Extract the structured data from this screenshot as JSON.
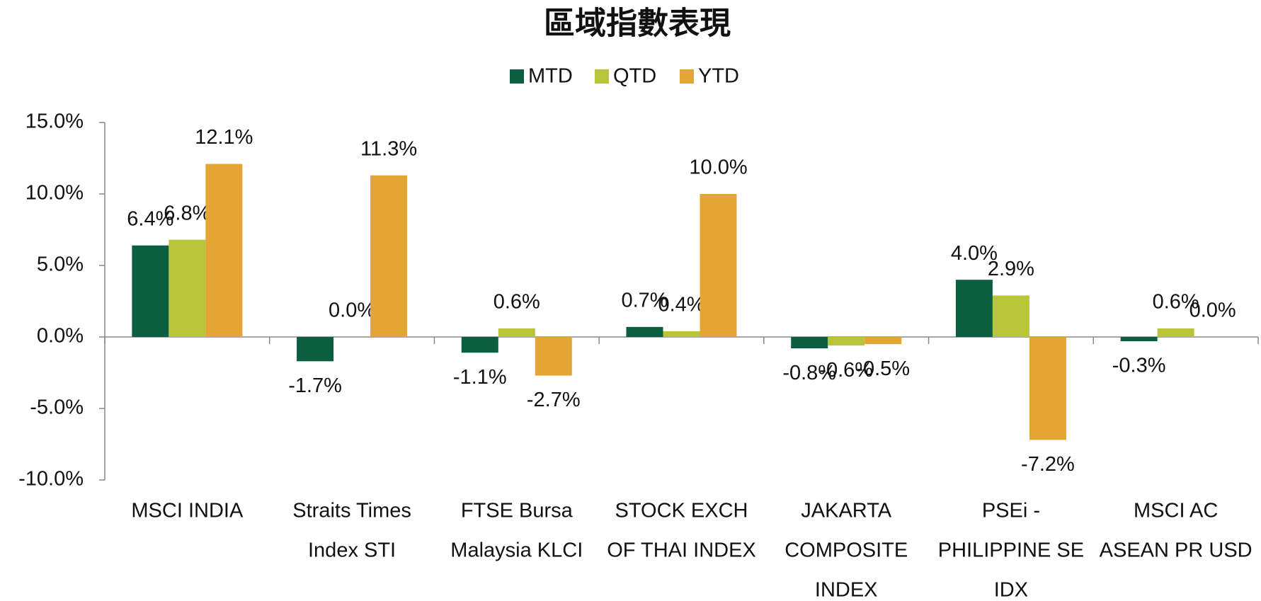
{
  "chart_data": {
    "type": "bar",
    "title": "區域指數表現",
    "categories": [
      [
        "MSCI INDIA"
      ],
      [
        "Straits Times",
        "Index STI"
      ],
      [
        "FTSE Bursa",
        "Malaysia KLCI"
      ],
      [
        "STOCK EXCH",
        "OF THAI INDEX"
      ],
      [
        "JAKARTA",
        "COMPOSITE",
        "INDEX"
      ],
      [
        "PSEi -",
        "PHILIPPINE SE",
        "IDX"
      ],
      [
        "MSCI AC",
        "ASEAN PR USD"
      ]
    ],
    "series": [
      {
        "name": "MTD",
        "color": "#0b5e3f",
        "values": [
          6.4,
          -1.7,
          -1.1,
          0.7,
          -0.8,
          4.0,
          -0.3
        ],
        "value_labels": [
          "6.4%",
          "-1.7%",
          "-1.1%",
          "0.7%",
          "-0.8%",
          "4.0%",
          "-0.3%"
        ]
      },
      {
        "name": "QTD",
        "color": "#b8c43a",
        "values": [
          6.8,
          0.0,
          0.6,
          0.4,
          -0.6,
          2.9,
          0.6
        ],
        "value_labels": [
          "6.8%",
          "0.0%",
          "0.6%",
          "0.4%",
          "-0.6%",
          "2.9%",
          "0.6%"
        ]
      },
      {
        "name": "YTD",
        "color": "#e3a535",
        "values": [
          12.1,
          11.3,
          -2.7,
          10.0,
          -0.5,
          -7.2,
          0.0
        ],
        "value_labels": [
          "12.1%",
          "11.3%",
          "-2.7%",
          "10.0%",
          "-0.5%",
          "-7.2%",
          "0.0%"
        ]
      }
    ],
    "ylim": [
      -10,
      15
    ],
    "yticks": [
      {
        "value": -10,
        "label": "-10.0%"
      },
      {
        "value": -5,
        "label": "-5.0%"
      },
      {
        "value": 0,
        "label": "0.0%"
      },
      {
        "value": 5,
        "label": "5.0%"
      },
      {
        "value": 10,
        "label": "10.0%"
      },
      {
        "value": 15,
        "label": "15.0%"
      }
    ],
    "legend": "top"
  }
}
